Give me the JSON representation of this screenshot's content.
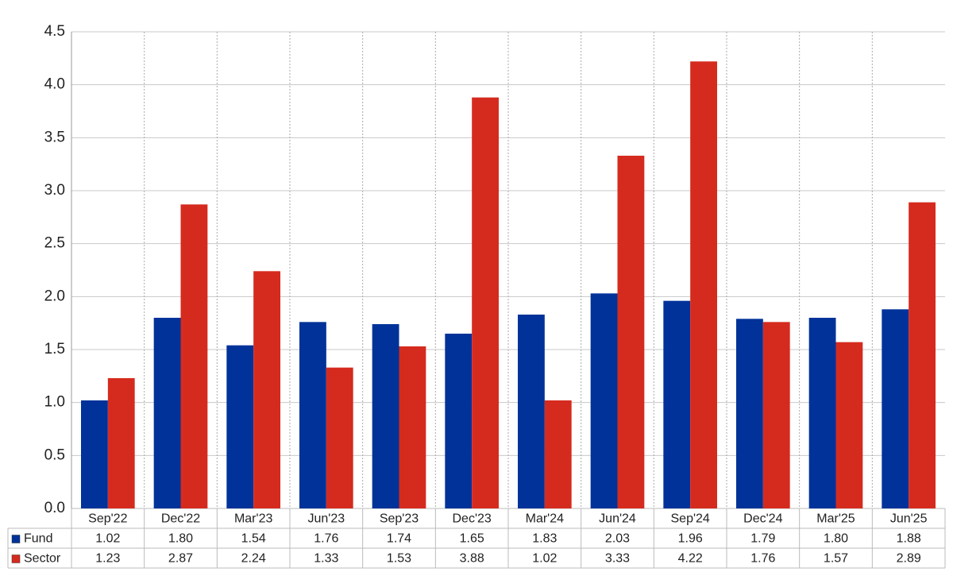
{
  "chart_data": {
    "type": "bar",
    "categories": [
      "Sep'22",
      "Dec'22",
      "Mar'23",
      "Jun'23",
      "Sep'23",
      "Dec'23",
      "Mar'24",
      "Jun'24",
      "Sep'24",
      "Dec'24",
      "Mar'25",
      "Jun'25"
    ],
    "series": [
      {
        "name": "Fund",
        "color": "#003299",
        "values": [
          1.02,
          1.8,
          1.54,
          1.76,
          1.74,
          1.65,
          1.83,
          2.03,
          1.96,
          1.79,
          1.8,
          1.88
        ],
        "value_labels": [
          "1.02",
          "1.80",
          "1.54",
          "1.76",
          "1.74",
          "1.65",
          "1.83",
          "2.03",
          "1.96",
          "1.79",
          "1.80",
          "1.88"
        ]
      },
      {
        "name": "Sector",
        "color": "#d52b1e",
        "values": [
          1.23,
          2.87,
          2.24,
          1.33,
          1.53,
          3.88,
          1.02,
          3.33,
          4.22,
          1.76,
          1.57,
          2.89
        ],
        "value_labels": [
          "1.23",
          "2.87",
          "2.24",
          "1.33",
          "1.53",
          "3.88",
          "1.02",
          "3.33",
          "4.22",
          "1.76",
          "1.57",
          "2.89"
        ]
      }
    ],
    "ylim": [
      0,
      4.5
    ],
    "yticks": [
      {
        "value": 0,
        "label": "0.0"
      },
      {
        "value": 0.5,
        "label": "0.5"
      },
      {
        "value": 1,
        "label": "1.0"
      },
      {
        "value": 1.5,
        "label": "1.5"
      },
      {
        "value": 2,
        "label": "2.0"
      },
      {
        "value": 2.5,
        "label": "2.5"
      },
      {
        "value": 3,
        "label": "3.0"
      },
      {
        "value": 3.5,
        "label": "3.5"
      },
      {
        "value": 4,
        "label": "4.0"
      },
      {
        "value": 4.5,
        "label": "4.5"
      }
    ],
    "grid": true
  }
}
